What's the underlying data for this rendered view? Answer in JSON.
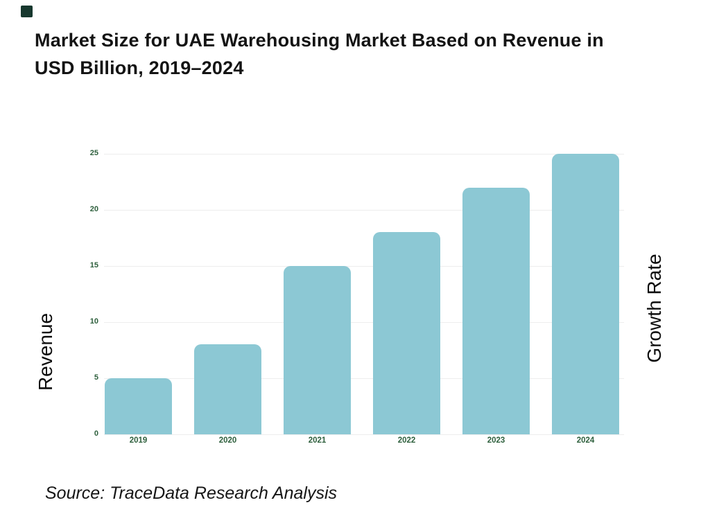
{
  "brand_square_color": "#17382e",
  "title": {
    "line1": "Market Size for UAE Warehousing Market Based on Revenue in",
    "line2": "USD Billion, 2019–2024"
  },
  "chart_data": {
    "type": "bar",
    "title": "Market Size for UAE Warehousing Market Based on Revenue in USD Billion, 2019–2024",
    "categories": [
      "2019",
      "2020",
      "2021",
      "2022",
      "2023",
      "2024"
    ],
    "values": [
      5,
      8,
      15,
      18,
      22,
      25
    ],
    "xlabel": "",
    "ylabel": "Revenue",
    "ylabel_right": "Growth Rate",
    "yticks": [
      0,
      5,
      10,
      15,
      20,
      25
    ],
    "ylim": [
      0,
      25
    ],
    "grid": true,
    "legend": "none",
    "bar_color": "#8cc8d4",
    "tick_label_color": "#2d5f3c",
    "gridline_color": "#ededed"
  },
  "source": "Source: TraceData Research Analysis"
}
